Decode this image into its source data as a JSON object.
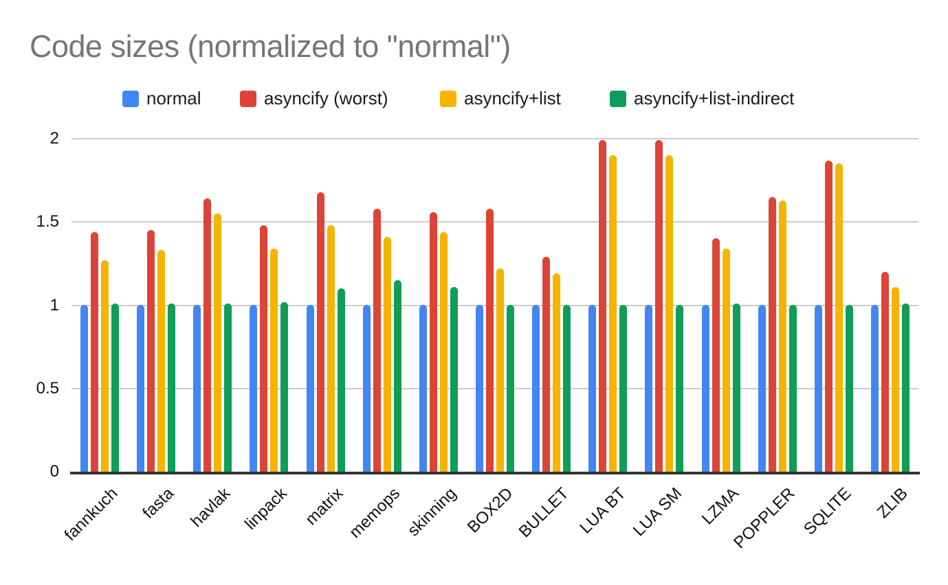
{
  "title": "Code sizes (normalized to \"normal\")",
  "chart_data": {
    "type": "bar",
    "title": "Code sizes (normalized to \"normal\")",
    "categories": [
      "fannkuch",
      "fasta",
      "havlak",
      "linpack",
      "matrix",
      "memops",
      "skinning",
      "BOX2D",
      "BULLET",
      "LUA BT",
      "LUA SM",
      "LZMA",
      "POPPLER",
      "SQLITE",
      "ZLIB"
    ],
    "series": [
      {
        "name": "normal",
        "color": "#4285F4",
        "values": [
          1.0,
          1.0,
          1.0,
          1.0,
          1.0,
          1.0,
          1.0,
          1.0,
          1.0,
          1.0,
          1.0,
          1.0,
          1.0,
          1.0,
          1.0
        ]
      },
      {
        "name": "asyncify (worst)",
        "color": "#DB4437",
        "values": [
          1.44,
          1.45,
          1.64,
          1.48,
          1.68,
          1.58,
          1.56,
          1.58,
          1.29,
          1.99,
          1.99,
          1.4,
          1.65,
          1.87,
          1.2
        ]
      },
      {
        "name": "asyncify+list",
        "color": "#F4B400",
        "values": [
          1.27,
          1.33,
          1.55,
          1.34,
          1.48,
          1.41,
          1.44,
          1.22,
          1.19,
          1.9,
          1.9,
          1.34,
          1.63,
          1.85,
          1.11
        ]
      },
      {
        "name": "asyncify+list-indirect",
        "color": "#0F9D58",
        "values": [
          1.01,
          1.01,
          1.01,
          1.02,
          1.1,
          1.15,
          1.11,
          1.0,
          1.0,
          1.0,
          1.0,
          1.01,
          1.0,
          1.0,
          1.01
        ]
      }
    ],
    "xlabel": "",
    "ylabel": "",
    "ylim": [
      0,
      2
    ],
    "yticks": [
      0,
      0.5,
      1,
      1.5,
      2
    ],
    "ytick_labels": [
      "0",
      "0.5",
      "1",
      "1.5",
      "2"
    ],
    "grid": true,
    "legend_position": "top",
    "colors": {
      "title_text": "#757575",
      "axis_text": "#111111",
      "gridline": "#cccccc",
      "axis_line": "#333333",
      "background": "#ffffff"
    }
  }
}
